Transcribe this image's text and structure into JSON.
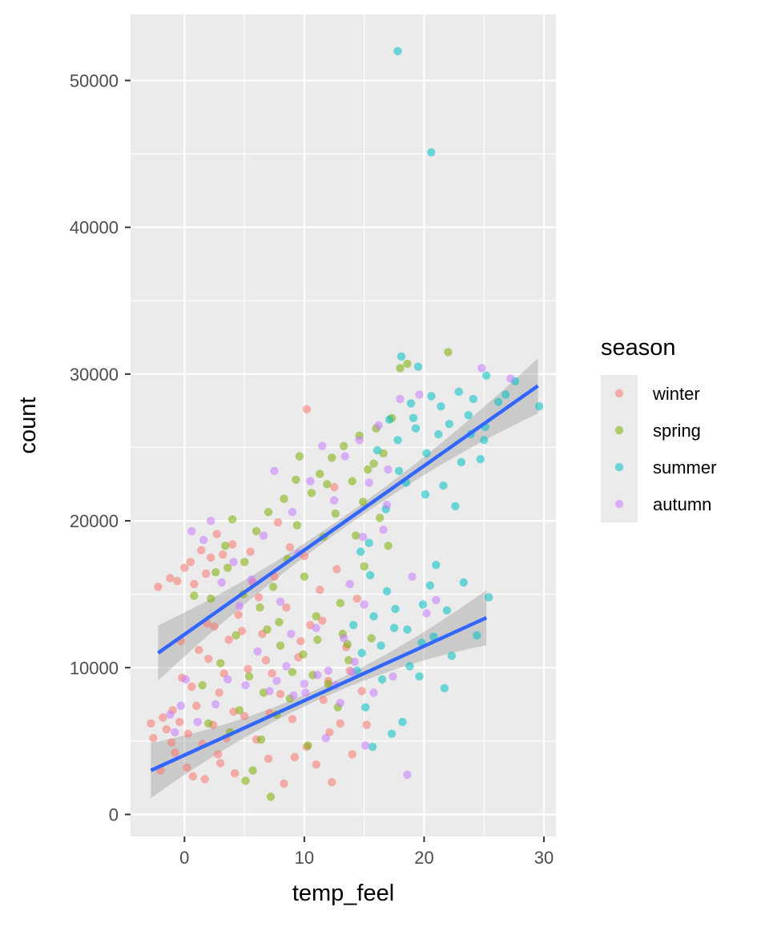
{
  "chart_data": {
    "type": "scatter",
    "xlabel": "temp_feel",
    "ylabel": "count",
    "xlim": [
      -4.5,
      31
    ],
    "ylim": [
      -1500,
      54500
    ],
    "x_ticks": [
      0,
      10,
      20,
      30
    ],
    "y_ticks": [
      0,
      10000,
      20000,
      30000,
      40000,
      50000
    ],
    "x_tick_labels": [
      "0",
      "10",
      "20",
      "30"
    ],
    "y_tick_labels": [
      "0",
      "10000",
      "20000",
      "30000",
      "40000",
      "50000"
    ],
    "grid": true,
    "legend": {
      "title": "season",
      "placement": "right",
      "entries": [
        "winter",
        "spring",
        "summer",
        "autumn"
      ]
    },
    "series": [
      {
        "name": "winter",
        "color": "#F8766D",
        "points": [
          [
            -2.8,
            6200
          ],
          [
            -2.6,
            5200
          ],
          [
            -2.2,
            15500
          ],
          [
            -2,
            3000
          ],
          [
            -1.8,
            6600
          ],
          [
            -1.5,
            5800
          ],
          [
            -1.2,
            16100
          ],
          [
            -1,
            7100
          ],
          [
            -0.8,
            4200
          ],
          [
            -0.6,
            15900
          ],
          [
            -0.4,
            6300
          ],
          [
            -0.2,
            9300
          ],
          [
            0,
            16800
          ],
          [
            0.2,
            3200
          ],
          [
            0.3,
            5500
          ],
          [
            0.5,
            17200
          ],
          [
            0.7,
            2600
          ],
          [
            0.8,
            15700
          ],
          [
            1,
            7400
          ],
          [
            1.2,
            11200
          ],
          [
            1.4,
            18000
          ],
          [
            1.5,
            4800
          ],
          [
            1.7,
            2400
          ],
          [
            1.8,
            16400
          ],
          [
            2,
            10600
          ],
          [
            2.2,
            17500
          ],
          [
            2.4,
            6100
          ],
          [
            2.5,
            12800
          ],
          [
            2.7,
            19100
          ],
          [
            2.9,
            8300
          ],
          [
            3,
            3500
          ],
          [
            3.2,
            17700
          ],
          [
            3.5,
            5200
          ],
          [
            3.7,
            11900
          ],
          [
            4,
            18400
          ],
          [
            4.2,
            2800
          ],
          [
            4.5,
            13600
          ],
          [
            5,
            6700
          ],
          [
            5.3,
            9900
          ],
          [
            5.5,
            17900
          ],
          [
            6,
            5100
          ],
          [
            6.2,
            14800
          ],
          [
            6.5,
            12300
          ],
          [
            7,
            3800
          ],
          [
            7.3,
            9600
          ],
          [
            7.5,
            16200
          ],
          [
            8,
            8200
          ],
          [
            8.3,
            2100
          ],
          [
            8.5,
            14100
          ],
          [
            9,
            6500
          ],
          [
            9.5,
            10700
          ],
          [
            10,
            17600
          ],
          [
            10.2,
            4600
          ],
          [
            10.5,
            12900
          ],
          [
            11,
            3400
          ],
          [
            11.3,
            15300
          ],
          [
            11.6,
            7800
          ],
          [
            12,
            9100
          ],
          [
            12.3,
            2200
          ],
          [
            12.7,
            16700
          ],
          [
            13,
            6200
          ],
          [
            13.5,
            11400
          ],
          [
            14,
            4100
          ],
          [
            14.4,
            14700
          ],
          [
            14.8,
            8400
          ],
          [
            10.2,
            27600
          ],
          [
            12.5,
            22300
          ],
          [
            7.8,
            19900
          ],
          [
            1.9,
            13000
          ],
          [
            4.1,
            7000
          ],
          [
            6.8,
            10500
          ],
          [
            9.7,
            11800
          ],
          [
            11.5,
            13200
          ],
          [
            13.8,
            9800
          ],
          [
            3.3,
            9600
          ],
          [
            0.6,
            8700
          ],
          [
            -0.3,
            11800
          ],
          [
            5.7,
            15800
          ],
          [
            8.8,
            18200
          ],
          [
            2.8,
            4100
          ],
          [
            -1.1,
            4900
          ],
          [
            15.2,
            6100
          ],
          [
            12.1,
            5600
          ],
          [
            9.2,
            3900
          ],
          [
            4.8,
            12500
          ],
          [
            7.1,
            6900
          ]
        ]
      },
      {
        "name": "spring",
        "color": "#7CAE00",
        "points": [
          [
            0.8,
            14900
          ],
          [
            1.5,
            8800
          ],
          [
            2,
            6200
          ],
          [
            2.6,
            16500
          ],
          [
            3,
            10300
          ],
          [
            3.4,
            18300
          ],
          [
            3.8,
            5600
          ],
          [
            4,
            20100
          ],
          [
            4.3,
            12200
          ],
          [
            4.6,
            7100
          ],
          [
            5,
            17200
          ],
          [
            5.4,
            9400
          ],
          [
            5.7,
            3000
          ],
          [
            6,
            19300
          ],
          [
            6.3,
            14100
          ],
          [
            6.6,
            8300
          ],
          [
            7,
            20600
          ],
          [
            7.2,
            1200
          ],
          [
            7.4,
            15500
          ],
          [
            7.7,
            6800
          ],
          [
            8,
            11500
          ],
          [
            8.3,
            21500
          ],
          [
            8.6,
            17400
          ],
          [
            9,
            9700
          ],
          [
            9.3,
            22800
          ],
          [
            9.6,
            24400
          ],
          [
            10,
            16200
          ],
          [
            10.3,
            4700
          ],
          [
            10.6,
            21900
          ],
          [
            11,
            13500
          ],
          [
            11.3,
            23200
          ],
          [
            11.6,
            18900
          ],
          [
            12,
            8900
          ],
          [
            12.3,
            24300
          ],
          [
            12.6,
            20500
          ],
          [
            13,
            14400
          ],
          [
            13.3,
            25100
          ],
          [
            13.6,
            11600
          ],
          [
            14,
            22700
          ],
          [
            14.3,
            19000
          ],
          [
            14.6,
            25800
          ],
          [
            15,
            16900
          ],
          [
            15.3,
            23500
          ],
          [
            15.6,
            12000
          ],
          [
            16,
            26300
          ],
          [
            16.3,
            20200
          ],
          [
            16.6,
            24600
          ],
          [
            17,
            18300
          ],
          [
            17.3,
            27000
          ],
          [
            18,
            30400
          ],
          [
            18.6,
            30700
          ],
          [
            22,
            31500
          ],
          [
            6.4,
            5100
          ],
          [
            5.1,
            2300
          ],
          [
            8.8,
            7900
          ],
          [
            10.7,
            9500
          ],
          [
            12.8,
            7300
          ],
          [
            13.7,
            10500
          ],
          [
            7.9,
            13100
          ],
          [
            9.4,
            19700
          ],
          [
            11.9,
            22500
          ],
          [
            14.9,
            21300
          ],
          [
            15.8,
            23900
          ],
          [
            4.9,
            15000
          ],
          [
            3.6,
            16800
          ],
          [
            2.2,
            14700
          ],
          [
            6.9,
            12600
          ],
          [
            9.9,
            10900
          ],
          [
            11.1,
            11900
          ],
          [
            13.2,
            12300
          ]
        ]
      },
      {
        "name": "summer",
        "color": "#00BFC4",
        "points": [
          [
            17.8,
            52000
          ],
          [
            20.6,
            45100
          ],
          [
            29.6,
            27800
          ],
          [
            27.6,
            29500
          ],
          [
            26.8,
            28600
          ],
          [
            25.2,
            29900
          ],
          [
            25,
            25500
          ],
          [
            25.4,
            14800
          ],
          [
            24.1,
            28300
          ],
          [
            23.7,
            27200
          ],
          [
            23.1,
            24000
          ],
          [
            22.6,
            21000
          ],
          [
            22.1,
            26600
          ],
          [
            21.7,
            8600
          ],
          [
            21.4,
            27800
          ],
          [
            21,
            17000
          ],
          [
            20.6,
            28500
          ],
          [
            20.2,
            24600
          ],
          [
            19.9,
            14300
          ],
          [
            19.5,
            30500
          ],
          [
            19.1,
            27000
          ],
          [
            18.8,
            10100
          ],
          [
            18.5,
            22600
          ],
          [
            18.1,
            31200
          ],
          [
            17.8,
            25500
          ],
          [
            17.5,
            12700
          ],
          [
            17.1,
            26900
          ],
          [
            16.8,
            20800
          ],
          [
            16.5,
            9200
          ],
          [
            16.1,
            24800
          ],
          [
            15.8,
            13500
          ],
          [
            15.4,
            18500
          ],
          [
            15.1,
            7300
          ],
          [
            14.8,
            11000
          ],
          [
            14.4,
            9800
          ],
          [
            14.1,
            12900
          ],
          [
            15.7,
            4600
          ],
          [
            17.3,
            5500
          ],
          [
            18.2,
            6300
          ],
          [
            19.8,
            11700
          ],
          [
            20.5,
            15600
          ],
          [
            21.9,
            13900
          ],
          [
            23.3,
            15800
          ],
          [
            24.4,
            12200
          ],
          [
            25.1,
            26400
          ],
          [
            22.9,
            28800
          ],
          [
            21.2,
            25900
          ],
          [
            19.3,
            26300
          ],
          [
            18.6,
            12600
          ],
          [
            17.6,
            14000
          ],
          [
            16.4,
            11500
          ],
          [
            15.5,
            16300
          ],
          [
            14.7,
            17900
          ],
          [
            19.6,
            9400
          ],
          [
            20.8,
            12100
          ],
          [
            22.3,
            10800
          ],
          [
            18.9,
            28000
          ],
          [
            17.9,
            23400
          ],
          [
            16.9,
            15200
          ],
          [
            20.1,
            21800
          ],
          [
            21.6,
            22400
          ],
          [
            23.9,
            25900
          ],
          [
            24.7,
            24200
          ],
          [
            26.2,
            28100
          ]
        ]
      },
      {
        "name": "autumn",
        "color": "#C77CFF",
        "points": [
          [
            -1.2,
            6800
          ],
          [
            -0.8,
            5600
          ],
          [
            -0.3,
            7400
          ],
          [
            0.1,
            9200
          ],
          [
            0.6,
            19300
          ],
          [
            1.1,
            6300
          ],
          [
            1.6,
            18700
          ],
          [
            2.2,
            20000
          ],
          [
            2.6,
            7500
          ],
          [
            3.1,
            15800
          ],
          [
            3.6,
            9200
          ],
          [
            4.1,
            17200
          ],
          [
            4.6,
            14200
          ],
          [
            5.1,
            8800
          ],
          [
            5.6,
            16000
          ],
          [
            6.1,
            11100
          ],
          [
            6.6,
            19000
          ],
          [
            7.1,
            8400
          ],
          [
            7.5,
            23400
          ],
          [
            8,
            14500
          ],
          [
            8.5,
            10100
          ],
          [
            9,
            20600
          ],
          [
            9.5,
            17800
          ],
          [
            10,
            8900
          ],
          [
            10.5,
            22700
          ],
          [
            11,
            12700
          ],
          [
            11.5,
            25100
          ],
          [
            12,
            9800
          ],
          [
            12.5,
            21400
          ],
          [
            13,
            7600
          ],
          [
            13.4,
            24400
          ],
          [
            13.8,
            15700
          ],
          [
            14.2,
            10400
          ],
          [
            14.6,
            25500
          ],
          [
            15,
            14300
          ],
          [
            15.4,
            22600
          ],
          [
            15.8,
            8300
          ],
          [
            16.2,
            26500
          ],
          [
            16.6,
            19400
          ],
          [
            17,
            23500
          ],
          [
            17.4,
            9400
          ],
          [
            18,
            28300
          ],
          [
            18.6,
            2700
          ],
          [
            19,
            16200
          ],
          [
            19.6,
            28600
          ],
          [
            20.2,
            13700
          ],
          [
            21,
            14600
          ],
          [
            24.8,
            30400
          ],
          [
            27.2,
            29700
          ],
          [
            15.1,
            4700
          ],
          [
            11.8,
            5200
          ],
          [
            9.1,
            8100
          ],
          [
            7.7,
            9100
          ],
          [
            13.3,
            12000
          ],
          [
            14.9,
            18900
          ],
          [
            16.9,
            21100
          ],
          [
            12.6,
            8800
          ],
          [
            11.1,
            9500
          ],
          [
            10.1,
            8300
          ],
          [
            14.0,
            9700
          ],
          [
            8.9,
            12300
          ]
        ]
      }
    ],
    "trend_lines": [
      {
        "x": [
          -2.2,
          29.5
        ],
        "y": [
          11000,
          29200
        ]
      },
      {
        "x": [
          -2.8,
          25.2
        ],
        "y": [
          3000,
          13400
        ]
      }
    ]
  }
}
